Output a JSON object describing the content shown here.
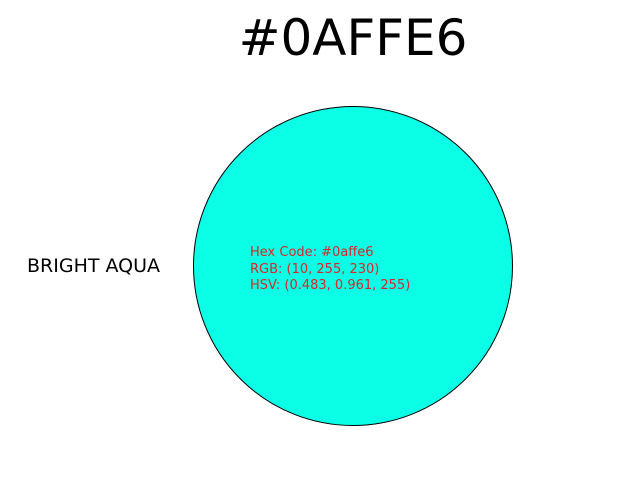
{
  "title": "#0AFFE6",
  "color_name": "BRIGHT AQUA",
  "swatch": {
    "fill": "#0affe6",
    "stroke": "#000000"
  },
  "info": {
    "hex_line": "Hex Code: #0affe6",
    "rgb_line": "RGB: (10, 255, 230)",
    "hsv_line": "HSV: (0.483, 0.961, 255)",
    "text_color": "#d62728"
  }
}
